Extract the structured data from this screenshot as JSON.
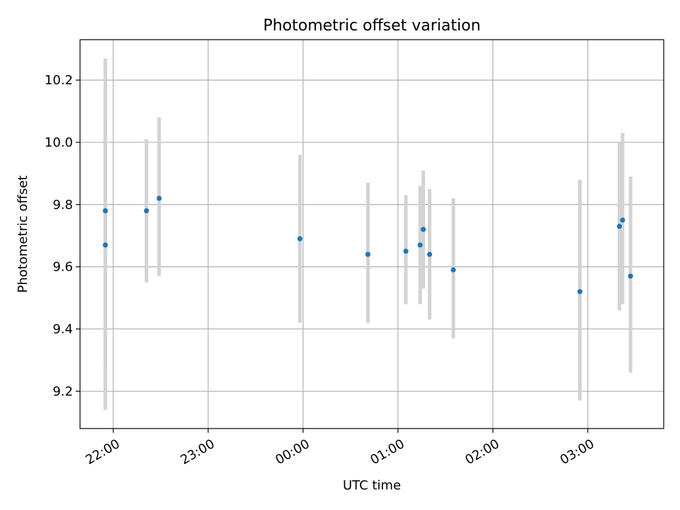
{
  "chart_data": {
    "type": "scatter",
    "title": "Photometric offset variation",
    "xlabel": "UTC time",
    "ylabel": "Photometric offset",
    "x_tick_labels": [
      "22:00",
      "23:00",
      "00:00",
      "01:00",
      "02:00",
      "03:00"
    ],
    "x_tick_hours": [
      22,
      23,
      24,
      25,
      26,
      27
    ],
    "xlim": [
      "21:39",
      "03:48"
    ],
    "ylim": [
      9.08,
      10.33
    ],
    "y_ticks": [
      9.2,
      9.4,
      9.6,
      9.8,
      10.0,
      10.2
    ],
    "y_tick_labels": [
      "9.2",
      "9.4",
      "9.6",
      "9.8",
      "10.0",
      "10.2"
    ],
    "grid": true,
    "marker_color": "#1f77b4",
    "errorbar_color": "#d3d3d3",
    "points": [
      {
        "time": "21:55",
        "value": 9.78,
        "err_low": 9.14,
        "err_high": 10.27
      },
      {
        "time": "21:55",
        "value": 9.67,
        "err_low": 9.28,
        "err_high": 10.05
      },
      {
        "time": "22:21",
        "value": 9.78,
        "err_low": 9.55,
        "err_high": 10.01
      },
      {
        "time": "22:29",
        "value": 9.82,
        "err_low": 9.57,
        "err_high": 10.08
      },
      {
        "time": "23:58",
        "value": 9.69,
        "err_low": 9.42,
        "err_high": 9.96
      },
      {
        "time": "00:41",
        "value": 9.64,
        "err_low": 9.42,
        "err_high": 9.87
      },
      {
        "time": "01:05",
        "value": 9.65,
        "err_low": 9.48,
        "err_high": 9.83
      },
      {
        "time": "01:14",
        "value": 9.67,
        "err_low": 9.48,
        "err_high": 9.86
      },
      {
        "time": "01:16",
        "value": 9.72,
        "err_low": 9.53,
        "err_high": 9.91
      },
      {
        "time": "01:20",
        "value": 9.64,
        "err_low": 9.43,
        "err_high": 9.85
      },
      {
        "time": "01:35",
        "value": 9.59,
        "err_low": 9.37,
        "err_high": 9.82
      },
      {
        "time": "02:55",
        "value": 9.52,
        "err_low": 9.17,
        "err_high": 9.88
      },
      {
        "time": "03:20",
        "value": 9.73,
        "err_low": 9.46,
        "err_high": 10.0
      },
      {
        "time": "03:22",
        "value": 9.75,
        "err_low": 9.48,
        "err_high": 10.03
      },
      {
        "time": "03:27",
        "value": 9.57,
        "err_low": 9.26,
        "err_high": 9.89
      }
    ]
  }
}
